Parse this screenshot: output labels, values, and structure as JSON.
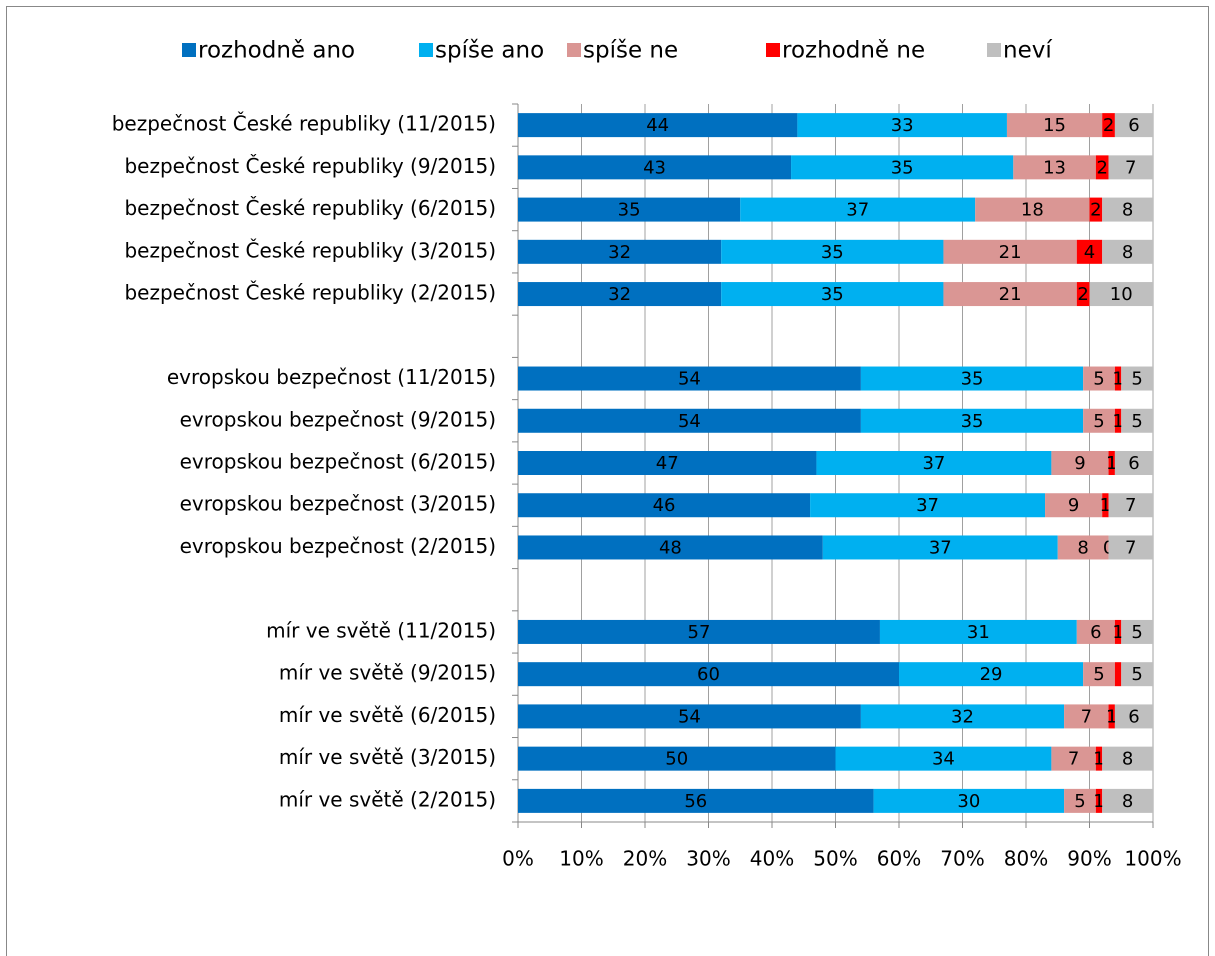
{
  "chart_data": {
    "type": "stacked_barh",
    "categories": [
      "bezpečnost České republiky (11/2015)",
      "bezpečnost České republiky (9/2015)",
      "bezpečnost České republiky (6/2015)",
      "bezpečnost České republiky (3/2015)",
      "bezpečnost České republiky (2/2015)",
      null,
      "evropskou bezpečnost (11/2015)",
      "evropskou bezpečnost (9/2015)",
      "evropskou bezpečnost (6/2015)",
      "evropskou bezpečnost (3/2015)",
      "evropskou bezpečnost (2/2015)",
      null,
      "mír ve světě (11/2015)",
      "mír ve světě (9/2015)",
      "mír ve světě (6/2015)",
      "mír ve světě (3/2015)",
      "mír ve světě (2/2015)"
    ],
    "series": [
      {
        "name": "rozhodně ano",
        "color": "#0070c0",
        "values": [
          44,
          43,
          35,
          32,
          32,
          null,
          54,
          54,
          47,
          46,
          48,
          null,
          57,
          60,
          54,
          50,
          56
        ]
      },
      {
        "name": "spíše ano",
        "color": "#00b0f0",
        "values": [
          33,
          35,
          37,
          35,
          35,
          null,
          35,
          35,
          37,
          37,
          37,
          null,
          31,
          29,
          32,
          34,
          30
        ]
      },
      {
        "name": "spíše ne",
        "color": "#da9694",
        "values": [
          15,
          13,
          18,
          21,
          21,
          null,
          5,
          5,
          9,
          9,
          8,
          null,
          6,
          5,
          7,
          7,
          5
        ]
      },
      {
        "name": "rozhodně ne",
        "color": "#ff0000",
        "values": [
          2,
          2,
          2,
          4,
          2,
          null,
          1,
          1,
          1,
          1,
          0,
          null,
          1,
          1,
          1,
          1,
          1
        ],
        "value_labels": [
          "2",
          "2",
          "2",
          "4",
          "2",
          null,
          "1",
          "1",
          "1",
          "1",
          "0",
          null,
          "1",
          null,
          "1",
          "1",
          "1"
        ]
      },
      {
        "name": "neví",
        "color": "#bfbfbf",
        "values": [
          6,
          7,
          8,
          8,
          10,
          null,
          5,
          5,
          6,
          7,
          7,
          null,
          5,
          5,
          6,
          8,
          8
        ]
      }
    ],
    "xlim": [
      0,
      100
    ],
    "xticks": [
      {
        "value": 0,
        "label": "0%"
      },
      {
        "value": 10,
        "label": "10%"
      },
      {
        "value": 20,
        "label": "20%"
      },
      {
        "value": 30,
        "label": "30%"
      },
      {
        "value": 40,
        "label": "40%"
      },
      {
        "value": 50,
        "label": "50%"
      },
      {
        "value": 60,
        "label": "60%"
      },
      {
        "value": 70,
        "label": "70%"
      },
      {
        "value": 80,
        "label": "80%"
      },
      {
        "value": 90,
        "label": "90%"
      },
      {
        "value": 100,
        "label": "100%"
      }
    ],
    "grid": true,
    "legend": "top"
  }
}
